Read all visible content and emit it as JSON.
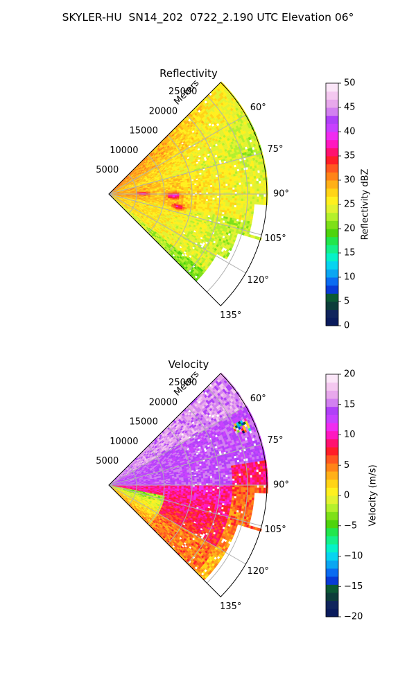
{
  "suptitle": "SKYLER-HU  SN14_202  0722_2.190 UTC Elevation 06°",
  "chart_data": [
    {
      "type": "heatmap",
      "projection": "polar-sector",
      "title": "Reflectivity",
      "range_label": "Meters",
      "range_ticks": [
        "5000",
        "10000",
        "15000",
        "20000",
        "25000"
      ],
      "range_max": 28500,
      "azimuth_range": [
        45,
        135
      ],
      "azimuth_ticks": [
        "60°",
        "75°",
        "90°",
        "105°",
        "120°",
        "135°"
      ],
      "azimuth_tick_values": [
        60,
        75,
        90,
        105,
        120,
        135
      ],
      "grid": true,
      "colorbar": {
        "label": "Reflectivity dBZ",
        "min": 0,
        "max": 50,
        "ticks": [
          "0",
          "5",
          "10",
          "15",
          "20",
          "25",
          "30",
          "35",
          "40",
          "45",
          "50"
        ],
        "tick_values": [
          0,
          5,
          10,
          15,
          20,
          25,
          30,
          35,
          40,
          45,
          50
        ],
        "colors": [
          "#0a1b5c",
          "#10245c",
          "#0d3d3a",
          "#0b5a34",
          "#083bd6",
          "#0a6cf2",
          "#0aa6f2",
          "#06d4f0",
          "#05f2c8",
          "#14f08a",
          "#22e64c",
          "#4ed40c",
          "#7ee018",
          "#b4f02c",
          "#e2f230",
          "#fff01e",
          "#ffd416",
          "#ffb018",
          "#ff8418",
          "#ff5820",
          "#ff1e28",
          "#ff1270",
          "#ff18c0",
          "#f02cf0",
          "#c840ff",
          "#b040f8",
          "#d280f0",
          "#e8a8ec",
          "#f4c8f0",
          "#fbe6f8"
        ]
      },
      "data_summary": {
        "dominant_dbZ_range": [
          20,
          30
        ],
        "near_range_dbZ": [
          30,
          38
        ],
        "cores": [
          {
            "range": 6000,
            "azimuth": 89,
            "dbZ": 38
          },
          {
            "range": 11500,
            "azimuth": 91,
            "dbZ": 40
          },
          {
            "range": 12500,
            "azimuth": 100,
            "dbZ": 37
          }
        ],
        "clear_air_edge": "no echo beyond ~26 km at 95°–105° and beyond ~22 km at 120°–135°"
      }
    },
    {
      "type": "heatmap",
      "projection": "polar-sector",
      "title": "Velocity",
      "range_label": "Meters",
      "range_ticks": [
        "5000",
        "10000",
        "15000",
        "20000",
        "25000"
      ],
      "range_max": 28500,
      "azimuth_range": [
        45,
        135
      ],
      "azimuth_ticks": [
        "60°",
        "75°",
        "90°",
        "105°",
        "120°",
        "135°"
      ],
      "azimuth_tick_values": [
        60,
        75,
        90,
        105,
        120,
        135
      ],
      "grid": true,
      "colorbar": {
        "label": "Velocity (m/s)",
        "min": -20,
        "max": 20,
        "ticks": [
          "−20",
          "−15",
          "−10",
          "−5",
          "0",
          "5",
          "10",
          "15",
          "20"
        ],
        "tick_values": [
          -20,
          -15,
          -10,
          -5,
          0,
          5,
          10,
          15,
          20
        ],
        "colors": [
          "#0a1b5c",
          "#10245c",
          "#0d3d3a",
          "#0b5a34",
          "#083bd6",
          "#0a6cf2",
          "#0aa6f2",
          "#06d4f0",
          "#05f2c8",
          "#14f08a",
          "#22e64c",
          "#4ed40c",
          "#7ee018",
          "#b4f02c",
          "#e2f230",
          "#fff01e",
          "#ffd416",
          "#ffb018",
          "#ff8418",
          "#ff5820",
          "#ff1e28",
          "#ff1270",
          "#ff18c0",
          "#f02cf0",
          "#c840ff",
          "#b040f8",
          "#d280f0",
          "#e8a8ec",
          "#f4c8f0",
          "#fbe6f8"
        ]
      },
      "data_summary": {
        "azimuth_45_to_90_ms": 14,
        "azimuth_90_to_120_ms": 10,
        "azimuth_120_to_135_ms": 3,
        "near_range_low_azimuth_ms": -3,
        "outer_high_azimuth_ms": 0,
        "noise_patch": {
          "range": 26000,
          "azimuth": 66
        }
      }
    }
  ]
}
